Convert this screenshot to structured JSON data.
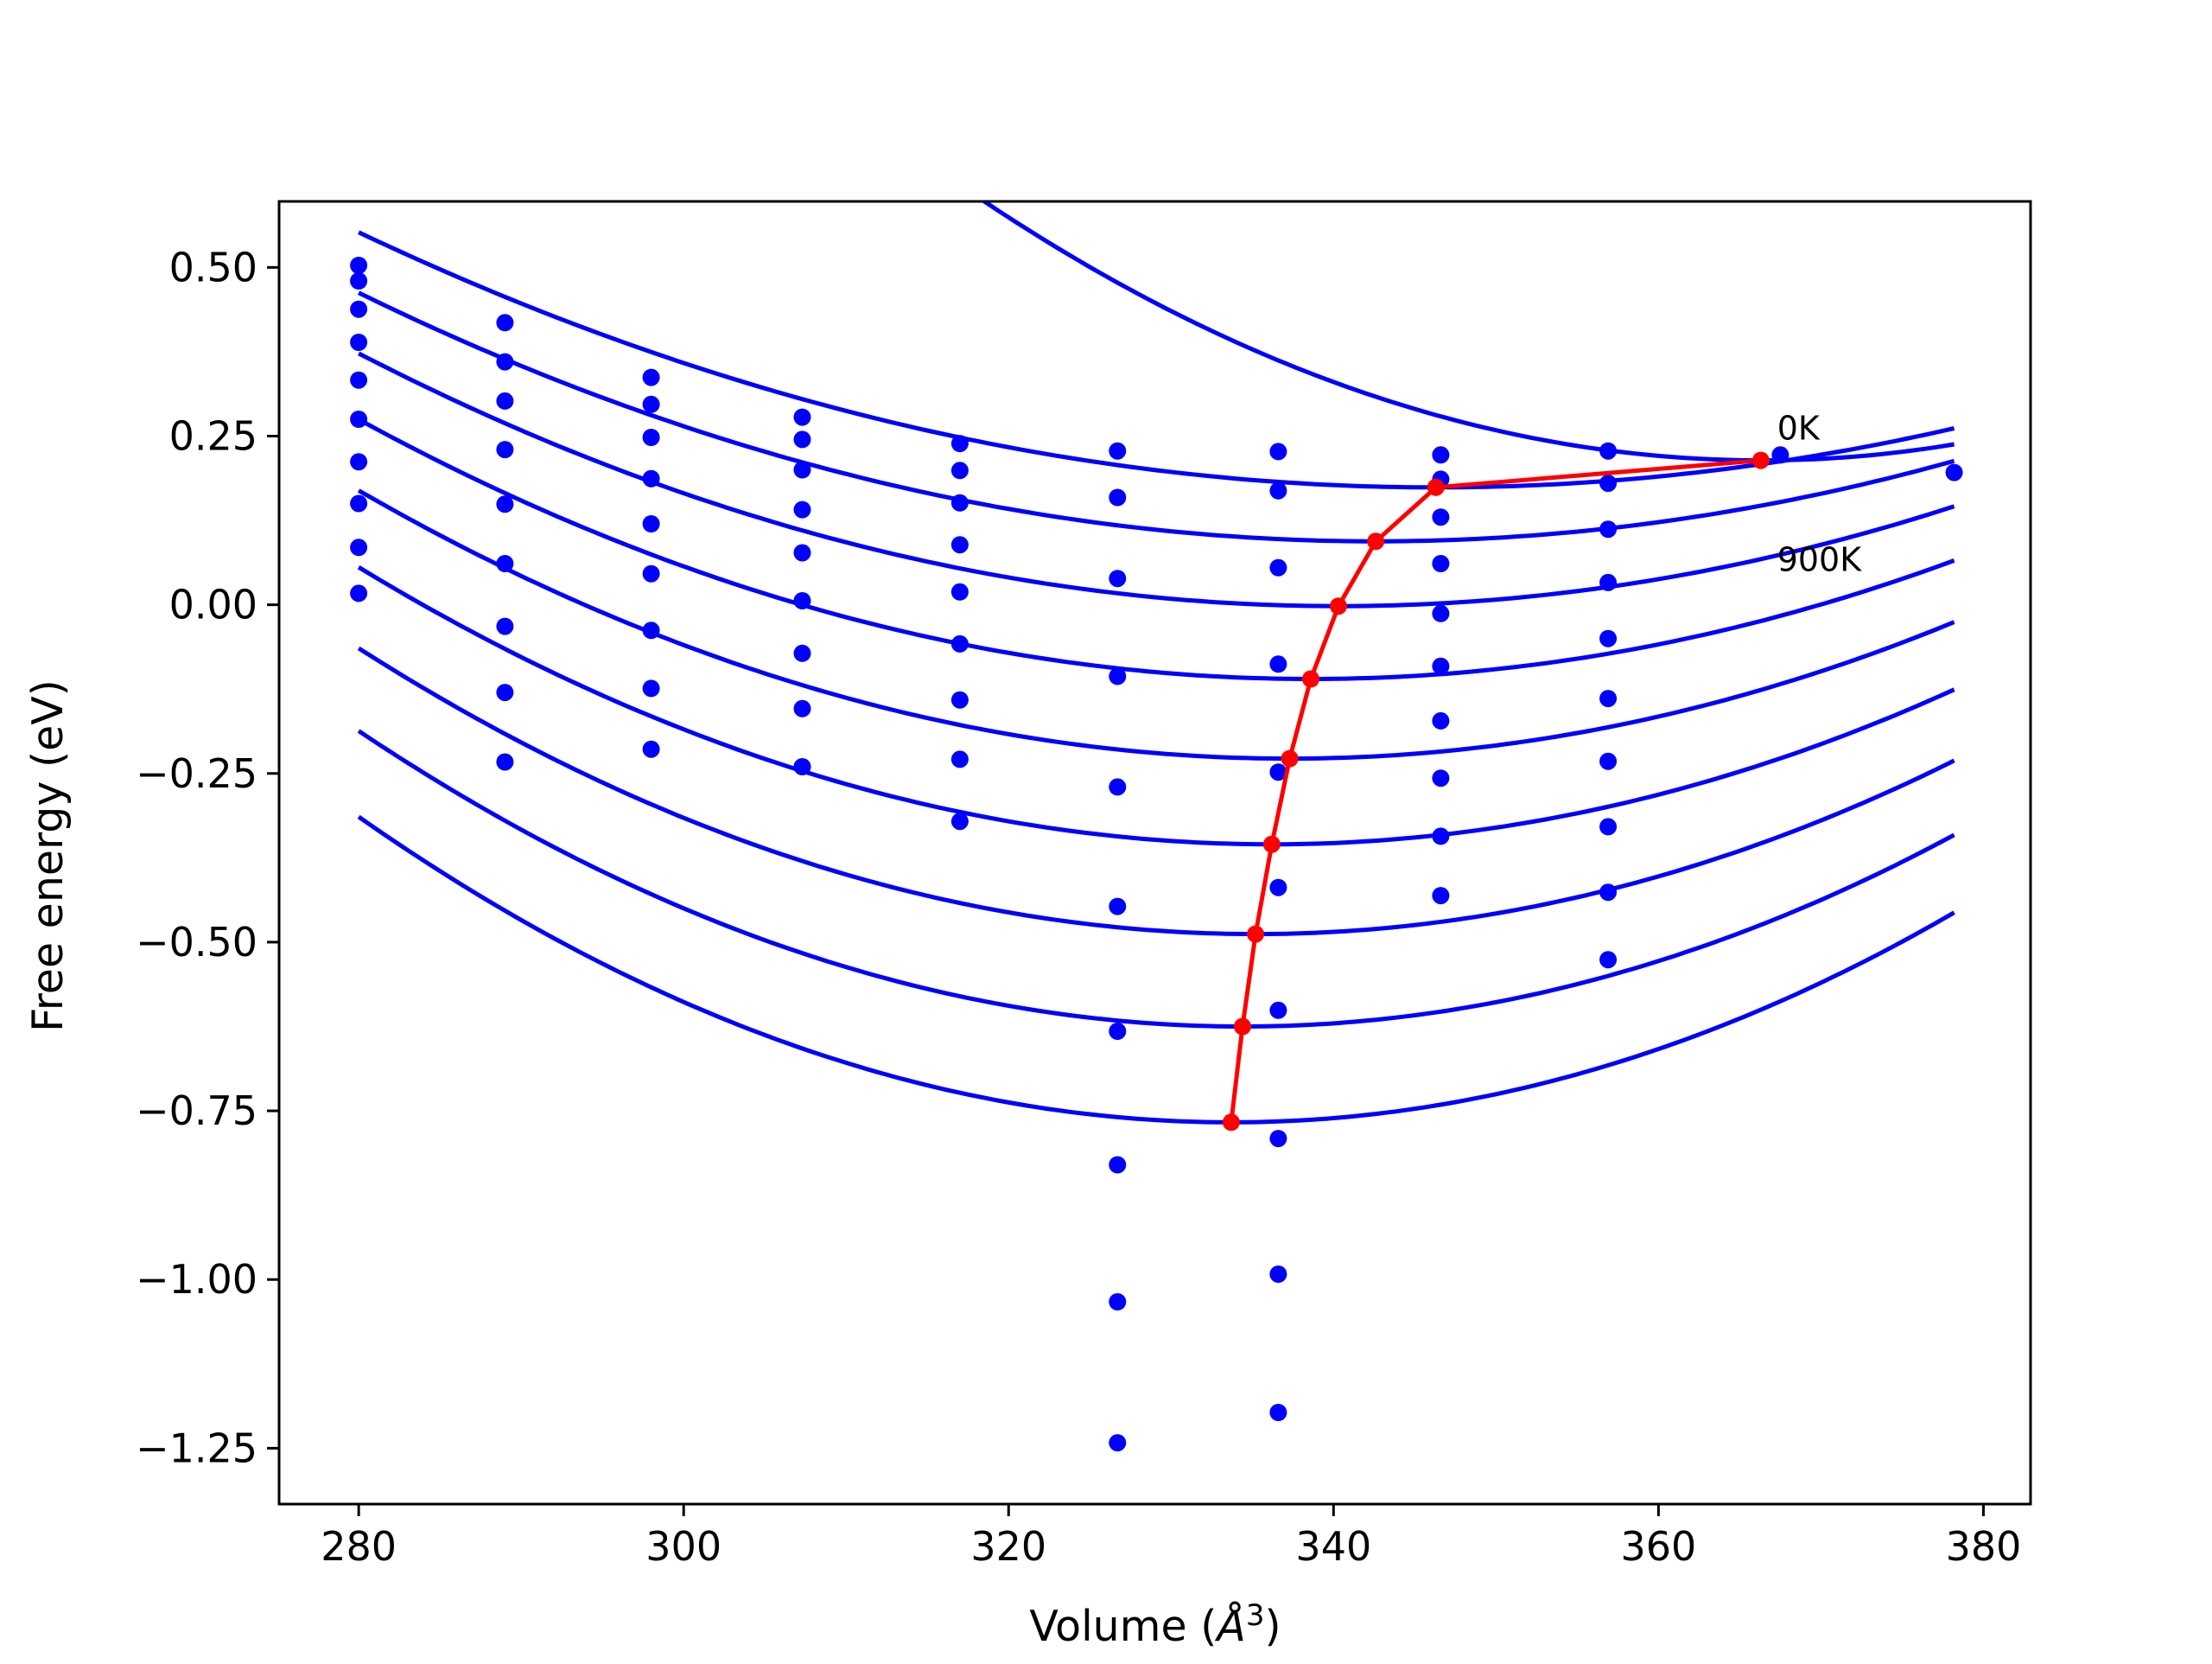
{
  "chart_data": {
    "type": "line",
    "xlabel": "Volume (",
    "xlabel_symbol": "Å",
    "xlabel_exponent": "3",
    "xlabel_close": ")",
    "ylabel": "Free energy (eV)",
    "xlim": [
      275.1,
      382.9
    ],
    "ylim": [
      -1.3328,
      0.5978
    ],
    "xticks": [
      280,
      300,
      320,
      340,
      360,
      380
    ],
    "xtick_labels": [
      "280",
      "300",
      "320",
      "340",
      "360",
      "380"
    ],
    "yticks": [
      0.5,
      0.25,
      0.0,
      -0.25,
      -0.5,
      -0.75,
      -1.0,
      -1.25
    ],
    "ytick_labels": [
      "0.50",
      "0.25",
      "0.00",
      "−0.25",
      "−0.50",
      "−0.75",
      "−1.00",
      "−1.25"
    ],
    "grid": false,
    "colors": {
      "curves": "#0000ff",
      "points": "#0000ff",
      "minimum_path": "#ff0000",
      "axes": "#000000"
    },
    "annotations": [
      {
        "text": "0K",
        "x": 367.3,
        "y": 0.245
      },
      {
        "text": "900K",
        "x": 367.3,
        "y": 0.05
      }
    ],
    "fit_curves": [
      {
        "x_start": 280,
        "x_end": 378.2,
        "x_min": 366.3,
        "f_min": 0.214,
        "a": 0.000168
      },
      {
        "x_start": 280,
        "x_end": 378.2,
        "x_min": 346.3,
        "f_min": 0.174,
        "a": 8.6e-05
      },
      {
        "x_start": 280,
        "x_end": 378.2,
        "x_min": 342.6,
        "f_min": 0.094,
        "a": 9.4e-05
      },
      {
        "x_start": 280,
        "x_end": 378.2,
        "x_min": 340.3,
        "f_min": -0.002,
        "a": 0.000103
      },
      {
        "x_start": 280,
        "x_end": 378.2,
        "x_min": 338.6,
        "f_min": -0.11,
        "a": 0.000112
      },
      {
        "x_start": 280,
        "x_end": 378.2,
        "x_min": 337.3,
        "f_min": -0.228,
        "a": 0.000121
      },
      {
        "x_start": 280,
        "x_end": 378.2,
        "x_min": 336.2,
        "f_min": -0.355,
        "a": 0.00013
      },
      {
        "x_start": 280,
        "x_end": 378.2,
        "x_min": 335.2,
        "f_min": -0.488,
        "a": 0.000139
      },
      {
        "x_start": 280,
        "x_end": 378.2,
        "x_min": 334.4,
        "f_min": -0.625,
        "a": 0.000148
      },
      {
        "x_start": 280,
        "x_end": 378.2,
        "x_min": 333.7,
        "f_min": -0.767,
        "a": 0.000157
      }
    ],
    "minimum_path": {
      "x": [
        366.3,
        346.3,
        342.6,
        340.3,
        338.6,
        337.3,
        336.2,
        335.2,
        334.4,
        333.7
      ],
      "y": [
        0.214,
        0.174,
        0.094,
        -0.002,
        -0.11,
        -0.228,
        -0.355,
        -0.488,
        -0.625,
        -0.767
      ]
    },
    "scatter_points": [
      [
        280.0,
        0.503
      ],
      [
        280.0,
        0.48
      ],
      [
        280.0,
        0.438
      ],
      [
        280.0,
        0.389
      ],
      [
        280.0,
        0.333
      ],
      [
        280.0,
        0.275
      ],
      [
        280.0,
        0.212
      ],
      [
        280.0,
        0.15
      ],
      [
        280.0,
        0.085
      ],
      [
        280.0,
        0.017
      ],
      [
        289.0,
        0.418
      ],
      [
        289.0,
        0.36
      ],
      [
        289.0,
        0.302
      ],
      [
        289.0,
        0.23
      ],
      [
        289.0,
        0.149
      ],
      [
        289.0,
        0.061
      ],
      [
        289.0,
        -0.032
      ],
      [
        289.0,
        -0.13
      ],
      [
        289.0,
        -0.233
      ],
      [
        298.0,
        0.337
      ],
      [
        298.0,
        0.297
      ],
      [
        298.0,
        0.248
      ],
      [
        298.0,
        0.187
      ],
      [
        298.0,
        0.12
      ],
      [
        298.0,
        0.046
      ],
      [
        298.0,
        -0.038
      ],
      [
        298.0,
        -0.124
      ],
      [
        298.0,
        -0.214
      ],
      [
        307.3,
        0.278
      ],
      [
        307.3,
        0.245
      ],
      [
        307.3,
        0.2
      ],
      [
        307.3,
        0.141
      ],
      [
        307.3,
        0.077
      ],
      [
        307.3,
        0.006
      ],
      [
        307.3,
        -0.072
      ],
      [
        307.3,
        -0.154
      ],
      [
        307.3,
        -0.24
      ],
      [
        317.0,
        0.239
      ],
      [
        317.0,
        0.199
      ],
      [
        317.0,
        0.151
      ],
      [
        317.0,
        0.089
      ],
      [
        317.0,
        0.019
      ],
      [
        317.0,
        -0.058
      ],
      [
        317.0,
        -0.141
      ],
      [
        317.0,
        -0.229
      ],
      [
        317.0,
        -0.321
      ],
      [
        326.7,
        0.228
      ],
      [
        326.7,
        0.159
      ],
      [
        326.7,
        0.039
      ],
      [
        326.7,
        -0.106
      ],
      [
        326.7,
        -0.27
      ],
      [
        326.7,
        -0.447
      ],
      [
        326.7,
        -0.632
      ],
      [
        326.7,
        -0.83
      ],
      [
        326.7,
        -1.033
      ],
      [
        326.7,
        -1.242
      ],
      [
        336.6,
        0.227
      ],
      [
        336.6,
        0.169
      ],
      [
        336.6,
        0.055
      ],
      [
        336.6,
        -0.088
      ],
      [
        336.6,
        -0.248
      ],
      [
        336.6,
        -0.419
      ],
      [
        336.6,
        -0.601
      ],
      [
        336.6,
        -0.791
      ],
      [
        336.6,
        -0.992
      ],
      [
        336.6,
        -1.197
      ],
      [
        346.6,
        0.222
      ],
      [
        346.6,
        0.186
      ],
      [
        346.6,
        0.13
      ],
      [
        346.6,
        0.061
      ],
      [
        346.6,
        -0.013
      ],
      [
        346.6,
        -0.091
      ],
      [
        346.6,
        -0.172
      ],
      [
        346.6,
        -0.257
      ],
      [
        346.6,
        -0.343
      ],
      [
        346.6,
        -0.431
      ],
      [
        356.9,
        0.228
      ],
      [
        356.9,
        0.18
      ],
      [
        356.9,
        0.112
      ],
      [
        356.9,
        0.033
      ],
      [
        356.9,
        -0.05
      ],
      [
        356.9,
        -0.139
      ],
      [
        356.9,
        -0.232
      ],
      [
        356.9,
        -0.329
      ],
      [
        356.9,
        -0.426
      ],
      [
        356.9,
        -0.526
      ],
      [
        367.5,
        0.222
      ],
      [
        378.2,
        0.196
      ]
    ]
  }
}
